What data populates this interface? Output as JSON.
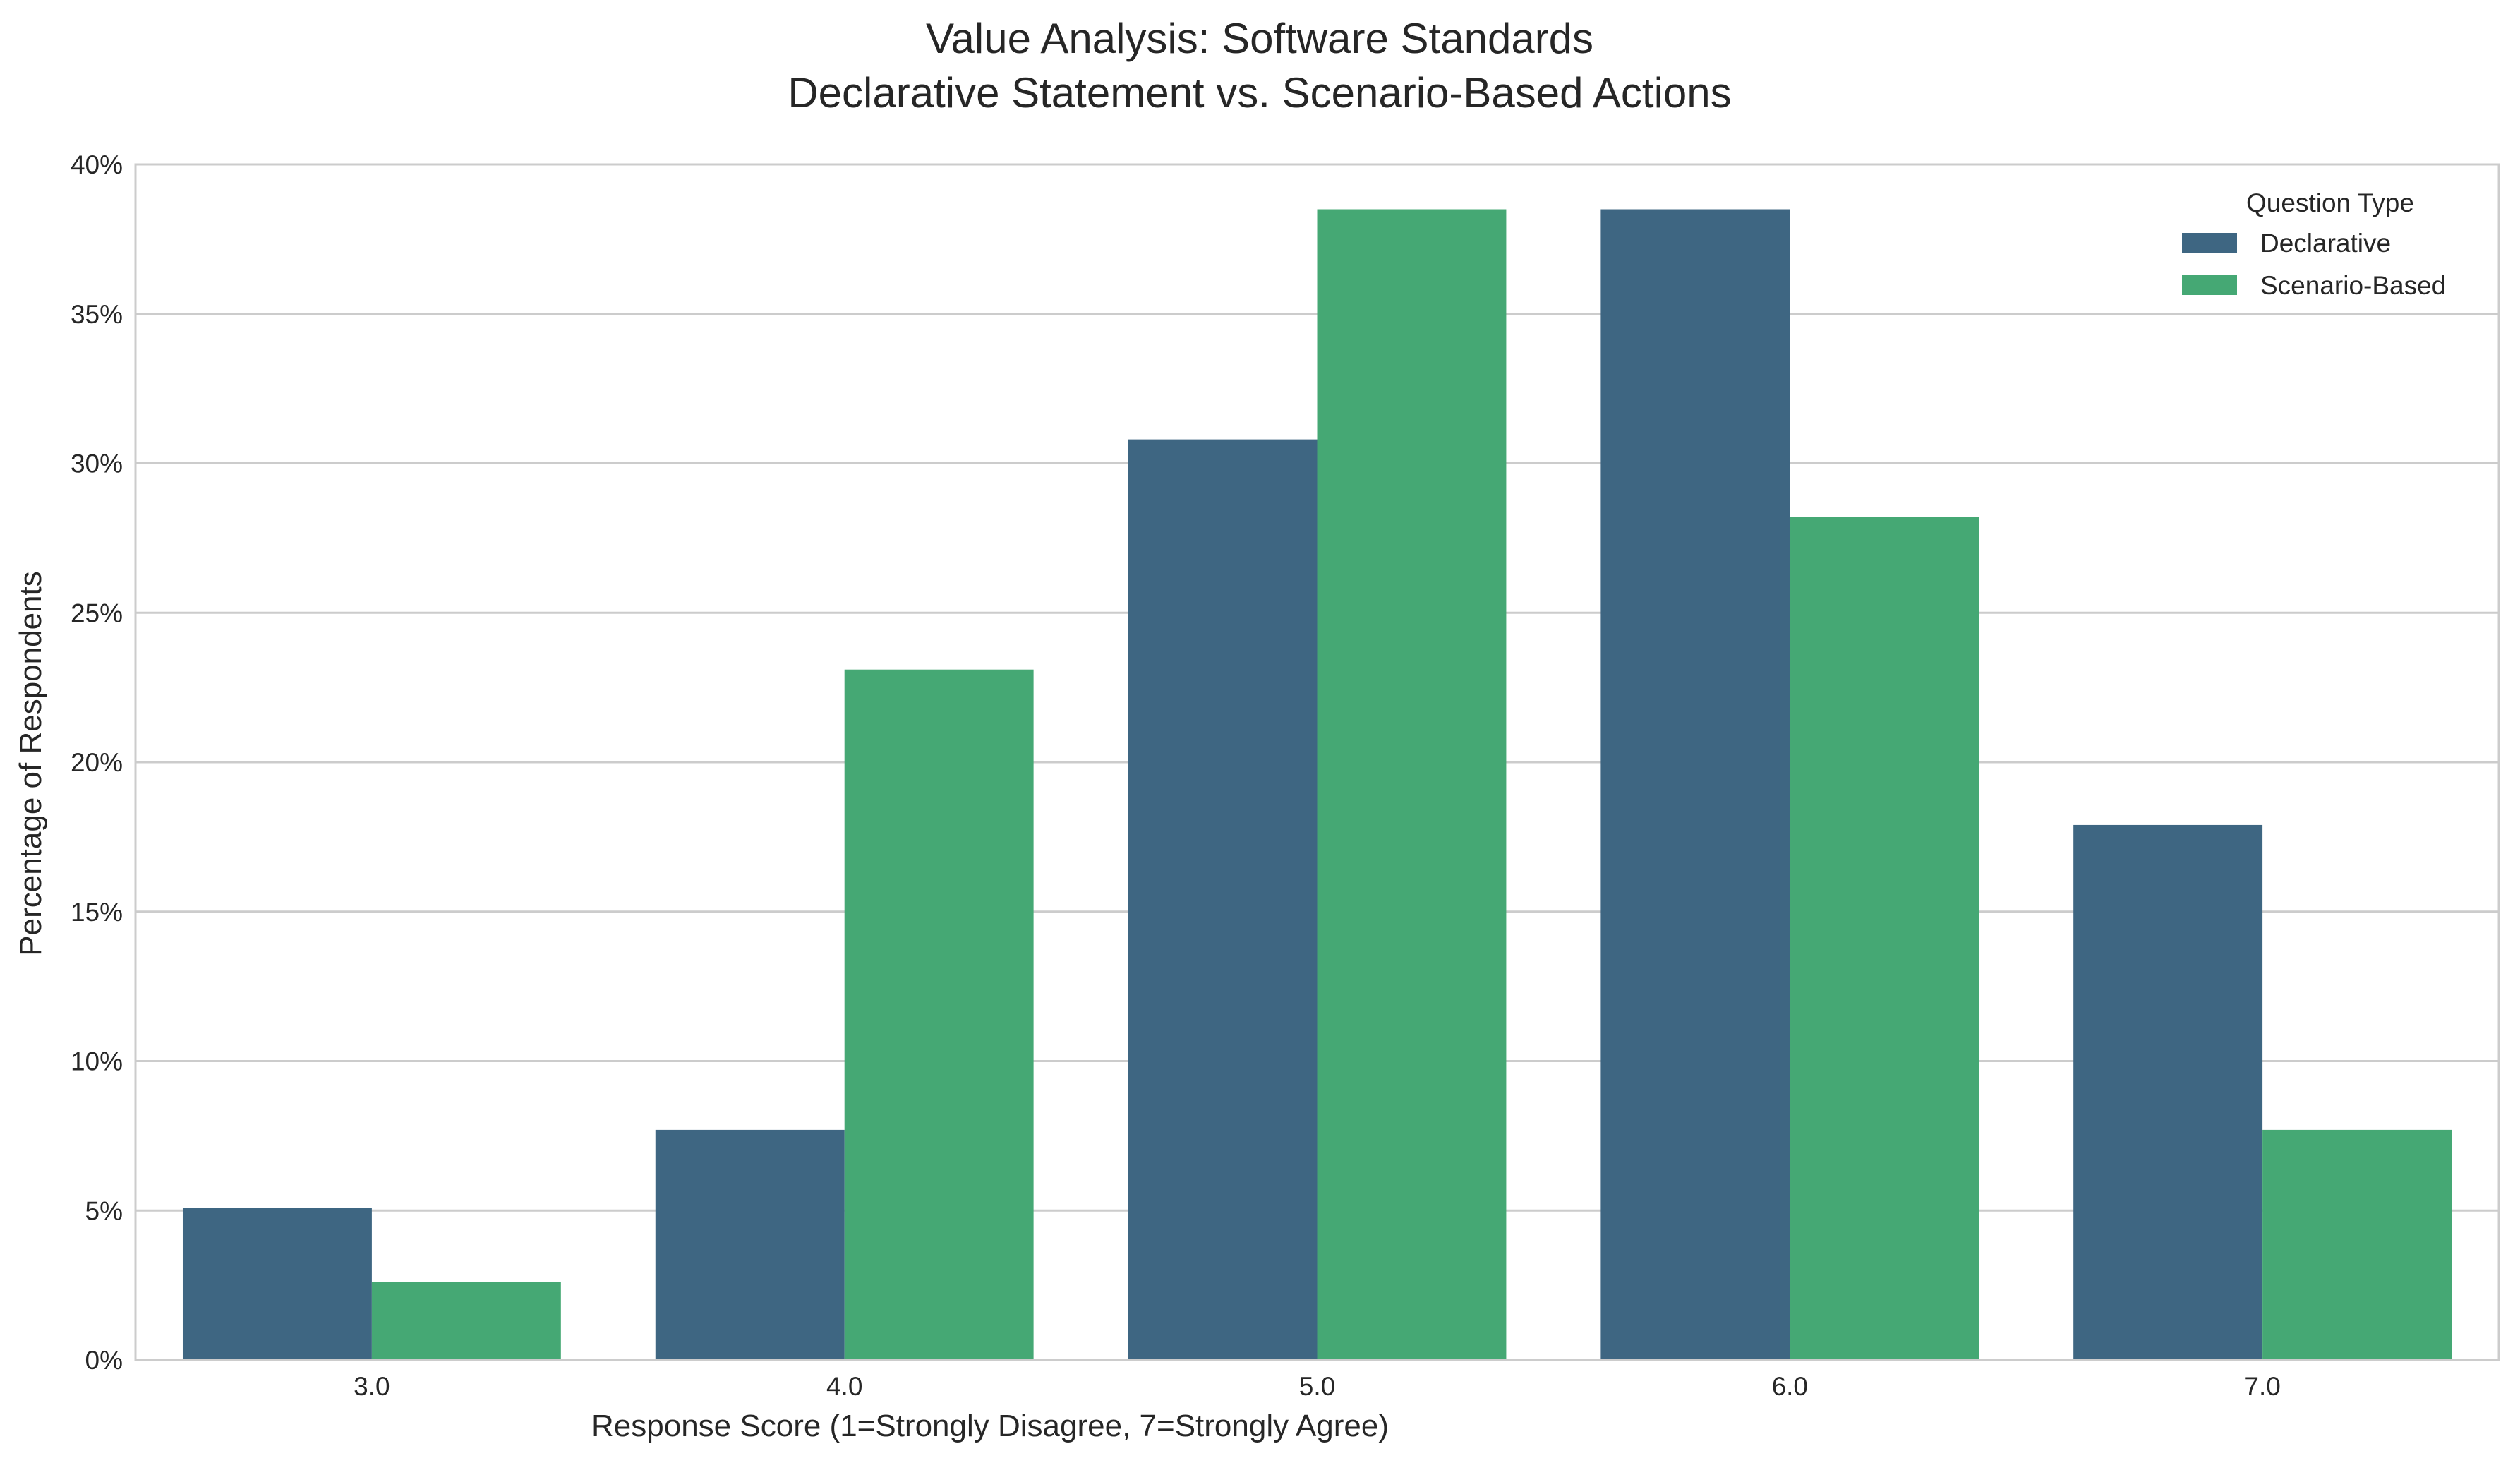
{
  "chart_data": {
    "type": "bar",
    "title": "Value Analysis: Software Standards",
    "subtitle": "Declarative Statement vs. Scenario-Based Actions",
    "xlabel": "Response Score (1=Strongly Disagree, 7=Strongly Agree)",
    "ylabel": "Percentage of Respondents",
    "categories": [
      "3.0",
      "4.0",
      "5.0",
      "6.0",
      "7.0"
    ],
    "series": [
      {
        "name": "Declarative",
        "color": "#3e6682",
        "values": [
          5.1,
          7.7,
          30.8,
          38.5,
          17.9
        ]
      },
      {
        "name": "Scenario-Based",
        "color": "#45a874",
        "values": [
          2.6,
          23.1,
          38.5,
          28.2,
          7.7
        ]
      }
    ],
    "ylim": [
      0,
      40
    ],
    "yticks": [
      0,
      5,
      10,
      15,
      20,
      25,
      30,
      35,
      40
    ],
    "ytick_labels": [
      "0%",
      "5%",
      "10%",
      "15%",
      "20%",
      "25%",
      "30%",
      "35%",
      "40%"
    ],
    "grid": "horizontal",
    "legend": {
      "title": "Question Type",
      "placement": "top-right"
    }
  }
}
